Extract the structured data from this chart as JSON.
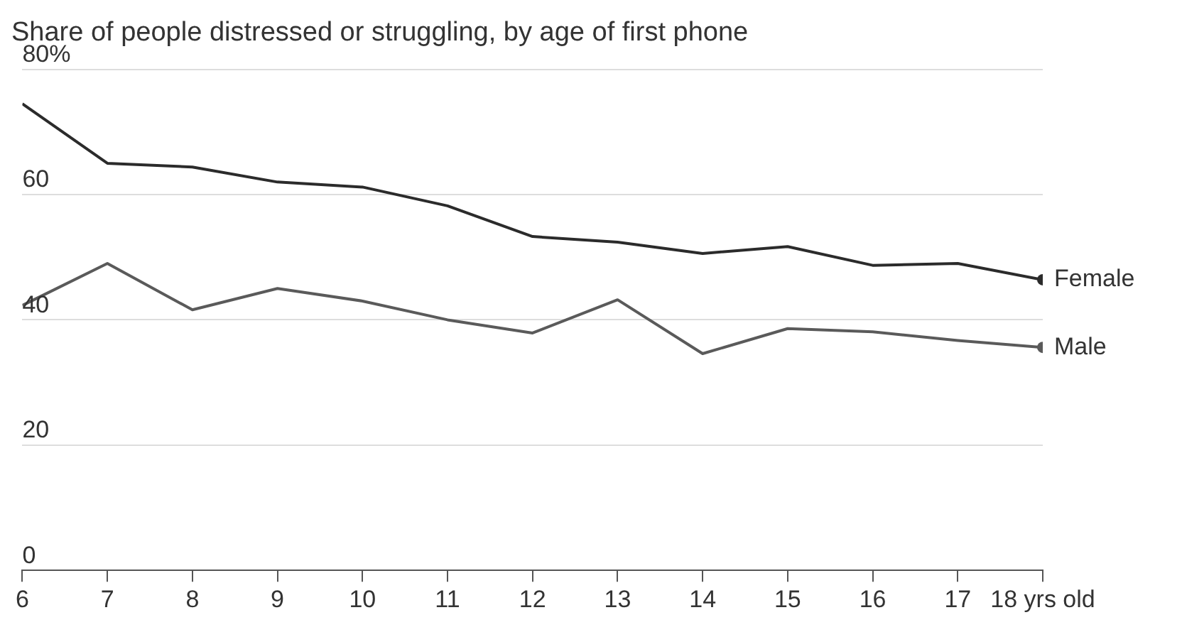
{
  "chart_data": {
    "type": "line",
    "title": "Share of people distressed or struggling, by age of first phone",
    "x": [
      6,
      7,
      8,
      9,
      10,
      11,
      12,
      13,
      14,
      15,
      16,
      17,
      18
    ],
    "series": [
      {
        "name": "Female",
        "color": "#2b2b2b",
        "values": [
          74.5,
          65,
          64.4,
          62,
          61.2,
          58.2,
          53.3,
          52.4,
          50.6,
          51.7,
          48.7,
          49,
          46.4
        ]
      },
      {
        "name": "Male",
        "color": "#5a5a5a",
        "values": [
          42.3,
          49,
          41.6,
          45,
          43,
          40,
          37.9,
          43.2,
          34.6,
          38.6,
          38.1,
          36.7,
          35.6
        ]
      }
    ],
    "xlim": [
      6,
      18
    ],
    "xticks": [
      6,
      7,
      8,
      9,
      10,
      11,
      12,
      13,
      14,
      15,
      16,
      17,
      {
        "value": 18,
        "label": "18 yrs old"
      }
    ],
    "ylim": [
      0,
      80
    ],
    "yticks": [
      0,
      20,
      40,
      60,
      {
        "value": 80,
        "label": "80%"
      }
    ],
    "grid": "y",
    "legend": false,
    "line_style": "solid"
  }
}
